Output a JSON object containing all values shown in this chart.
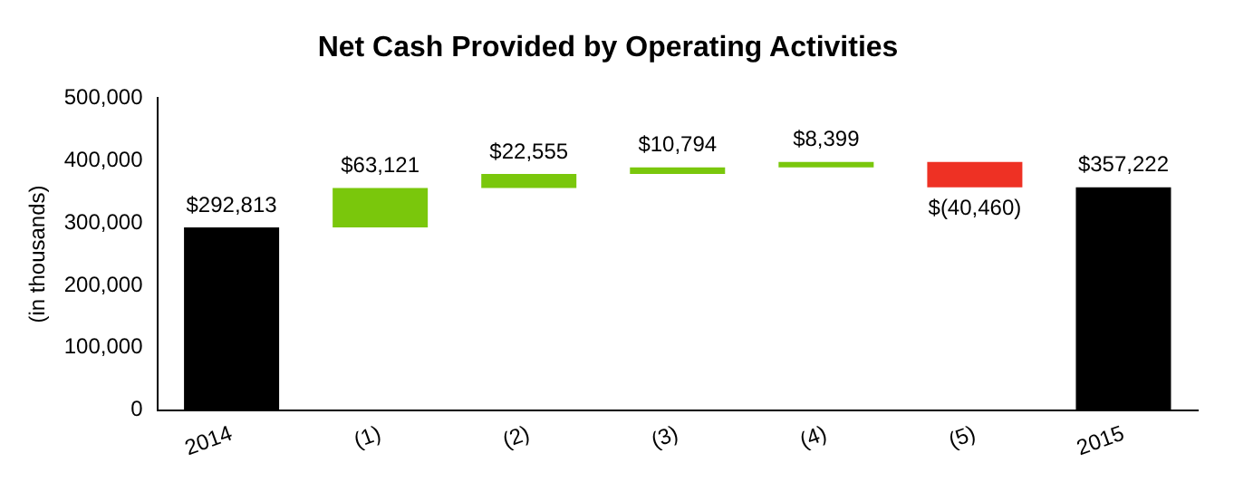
{
  "chart_data": {
    "type": "bar",
    "title": "Net Cash Provided by Operating Activities",
    "ylabel": "(in thousands)",
    "categories": [
      "2014",
      "(1)",
      "(2)",
      "(3)",
      "(4)",
      "(5)",
      "2015"
    ],
    "values": [
      292813,
      63121,
      22555,
      10794,
      8399,
      -40460,
      357222
    ],
    "base": [
      0,
      292813,
      355934,
      378489,
      389283,
      397682,
      0
    ],
    "colors": [
      "#000000",
      "#7ac70c",
      "#7ac70c",
      "#7ac70c",
      "#7ac70c",
      "#ee3124",
      "#000000"
    ],
    "value_labels": [
      "$292,813",
      "$63,121",
      "$22,555",
      "$10,794",
      "$8,399",
      "$(40,460)",
      "$357,222"
    ],
    "ylim": [
      0,
      500000
    ],
    "yticks": [
      {
        "value": 0,
        "label": "0"
      },
      {
        "value": 100000,
        "label": "100,000"
      },
      {
        "value": 200000,
        "label": "200,000"
      },
      {
        "value": 300000,
        "label": "300,000"
      },
      {
        "value": 400000,
        "label": "400,000"
      },
      {
        "value": 500000,
        "label": "500,000"
      }
    ],
    "grid": false,
    "legend": false
  }
}
